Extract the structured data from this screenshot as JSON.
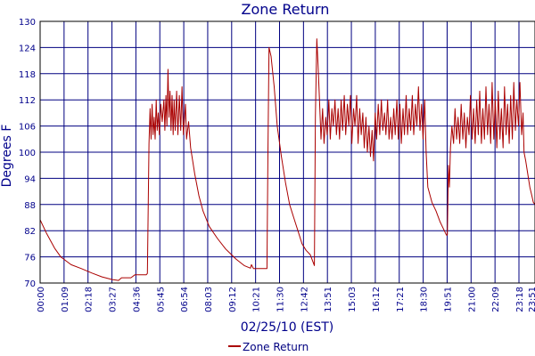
{
  "chart_data": {
    "type": "line",
    "title": "Zone Return",
    "xlabel": "02/25/10 (EST)",
    "ylabel": "Degrees F",
    "ylim": [
      70,
      130
    ],
    "yticks": [
      "70",
      "76",
      "82",
      "88",
      "94",
      "100",
      "106",
      "112",
      "118",
      "124",
      "130"
    ],
    "xticks": [
      "00:00",
      "01:09",
      "02:18",
      "03:27",
      "04:36",
      "05:45",
      "06:54",
      "08:03",
      "09:12",
      "10:21",
      "11:30",
      "12:42",
      "13:51",
      "15:03",
      "16:12",
      "17:21",
      "18:30",
      "19:51",
      "21:00",
      "22:09",
      "23:18",
      "23:51"
    ],
    "xlim_hours": [
      0,
      24
    ],
    "grid": true,
    "legend_position": "bottom-center",
    "series": [
      {
        "name": "Zone Return",
        "color": "#aa0000",
        "points": [
          [
            0.0,
            84.5
          ],
          [
            0.3,
            81.5
          ],
          [
            0.7,
            78
          ],
          [
            1.0,
            76
          ],
          [
            1.5,
            74.2
          ],
          [
            2.0,
            73.3
          ],
          [
            2.5,
            72.3
          ],
          [
            3.0,
            71.4
          ],
          [
            3.5,
            70.8
          ],
          [
            3.8,
            70.6
          ],
          [
            3.95,
            71.2
          ],
          [
            4.4,
            71.2
          ],
          [
            4.6,
            71.9
          ],
          [
            5.15,
            71.9
          ],
          [
            5.2,
            72.2
          ],
          [
            5.28,
            102
          ],
          [
            5.33,
            110
          ],
          [
            5.38,
            103
          ],
          [
            5.43,
            111
          ],
          [
            5.48,
            104
          ],
          [
            5.53,
            108
          ],
          [
            5.58,
            103
          ],
          [
            5.63,
            112
          ],
          [
            5.68,
            105
          ],
          [
            5.73,
            109
          ],
          [
            5.78,
            104
          ],
          [
            5.85,
            111
          ],
          [
            5.92,
            107
          ],
          [
            6.0,
            112
          ],
          [
            6.05,
            105
          ],
          [
            6.1,
            113
          ],
          [
            6.15,
            106
          ],
          [
            6.2,
            119
          ],
          [
            6.25,
            108
          ],
          [
            6.3,
            114
          ],
          [
            6.35,
            105
          ],
          [
            6.4,
            113
          ],
          [
            6.45,
            104
          ],
          [
            6.5,
            112
          ],
          [
            6.55,
            105
          ],
          [
            6.62,
            114
          ],
          [
            6.68,
            104
          ],
          [
            6.75,
            113
          ],
          [
            6.82,
            105
          ],
          [
            6.88,
            115
          ],
          [
            6.95,
            104
          ],
          [
            7.05,
            111
          ],
          [
            7.1,
            103
          ],
          [
            7.2,
            107
          ],
          [
            7.3,
            101
          ],
          [
            7.5,
            95
          ],
          [
            7.7,
            90
          ],
          [
            7.9,
            86.5
          ],
          [
            8.2,
            83
          ],
          [
            8.6,
            80.2
          ],
          [
            9.0,
            77.8
          ],
          [
            9.5,
            75.5
          ],
          [
            9.9,
            74
          ],
          [
            10.2,
            73.4
          ],
          [
            10.25,
            74.2
          ],
          [
            10.35,
            73.3
          ],
          [
            11.0,
            73.3
          ],
          [
            11.05,
            100
          ],
          [
            11.1,
            124
          ],
          [
            11.2,
            122
          ],
          [
            11.35,
            115
          ],
          [
            11.5,
            106
          ],
          [
            11.7,
            99
          ],
          [
            11.9,
            93
          ],
          [
            12.1,
            88
          ],
          [
            12.3,
            85
          ],
          [
            12.5,
            82
          ],
          [
            12.7,
            79
          ],
          [
            12.9,
            77.5
          ],
          [
            13.1,
            76.5
          ],
          [
            13.3,
            74
          ],
          [
            13.35,
            108
          ],
          [
            13.42,
            126
          ],
          [
            13.48,
            120
          ],
          [
            13.55,
            112
          ],
          [
            13.62,
            103
          ],
          [
            13.7,
            110
          ],
          [
            13.77,
            102
          ],
          [
            13.85,
            108
          ],
          [
            13.92,
            104
          ],
          [
            14.0,
            112
          ],
          [
            14.07,
            103
          ],
          [
            14.15,
            110
          ],
          [
            14.22,
            106
          ],
          [
            14.3,
            112
          ],
          [
            14.37,
            104
          ],
          [
            14.45,
            110
          ],
          [
            14.52,
            103
          ],
          [
            14.6,
            112
          ],
          [
            14.67,
            105
          ],
          [
            14.75,
            113
          ],
          [
            14.82,
            104
          ],
          [
            14.9,
            111
          ],
          [
            14.97,
            106
          ],
          [
            15.05,
            113
          ],
          [
            15.12,
            102
          ],
          [
            15.2,
            110
          ],
          [
            15.27,
            106
          ],
          [
            15.35,
            113
          ],
          [
            15.42,
            102
          ],
          [
            15.5,
            110
          ],
          [
            15.57,
            104
          ],
          [
            15.65,
            109
          ],
          [
            15.72,
            101
          ],
          [
            15.8,
            108
          ],
          [
            15.87,
            100
          ],
          [
            15.95,
            106
          ],
          [
            16.02,
            99
          ],
          [
            16.1,
            105
          ],
          [
            16.17,
            98
          ],
          [
            16.25,
            109
          ],
          [
            16.32,
            103
          ],
          [
            16.4,
            111
          ],
          [
            16.47,
            104
          ],
          [
            16.55,
            112
          ],
          [
            16.62,
            105
          ],
          [
            16.7,
            109
          ],
          [
            16.77,
            104
          ],
          [
            16.85,
            112
          ],
          [
            16.92,
            103
          ],
          [
            17.0,
            108
          ],
          [
            17.07,
            103
          ],
          [
            17.15,
            110
          ],
          [
            17.22,
            104
          ],
          [
            17.3,
            112
          ],
          [
            17.37,
            103
          ],
          [
            17.45,
            111
          ],
          [
            17.52,
            102
          ],
          [
            17.6,
            110
          ],
          [
            17.67,
            104
          ],
          [
            17.75,
            113
          ],
          [
            17.82,
            104
          ],
          [
            17.9,
            110
          ],
          [
            17.97,
            105
          ],
          [
            18.05,
            113
          ],
          [
            18.12,
            104
          ],
          [
            18.2,
            111
          ],
          [
            18.27,
            106
          ],
          [
            18.35,
            115
          ],
          [
            18.42,
            105
          ],
          [
            18.5,
            111
          ],
          [
            18.57,
            103
          ],
          [
            18.65,
            112
          ],
          [
            18.72,
            100
          ],
          [
            18.8,
            92
          ],
          [
            19.0,
            88.5
          ],
          [
            19.2,
            86.5
          ],
          [
            19.4,
            84
          ],
          [
            19.6,
            82
          ],
          [
            19.7,
            81
          ],
          [
            19.75,
            81
          ],
          [
            19.8,
            97
          ],
          [
            19.85,
            92
          ],
          [
            19.9,
            101
          ],
          [
            19.97,
            106
          ],
          [
            20.05,
            102
          ],
          [
            20.12,
            110
          ],
          [
            20.2,
            103
          ],
          [
            20.27,
            108
          ],
          [
            20.35,
            102
          ],
          [
            20.42,
            111
          ],
          [
            20.5,
            103
          ],
          [
            20.57,
            109
          ],
          [
            20.65,
            101
          ],
          [
            20.72,
            108
          ],
          [
            20.8,
            104
          ],
          [
            20.87,
            113
          ],
          [
            20.95,
            103
          ],
          [
            21.02,
            110
          ],
          [
            21.1,
            102
          ],
          [
            21.17,
            112
          ],
          [
            21.25,
            104
          ],
          [
            21.32,
            114
          ],
          [
            21.4,
            102
          ],
          [
            21.47,
            110
          ],
          [
            21.55,
            103
          ],
          [
            21.62,
            115
          ],
          [
            21.7,
            104
          ],
          [
            21.77,
            111
          ],
          [
            21.85,
            102
          ],
          [
            21.92,
            116
          ],
          [
            22.0,
            103
          ],
          [
            22.07,
            112
          ],
          [
            22.15,
            101
          ],
          [
            22.22,
            114
          ],
          [
            22.3,
            103
          ],
          [
            22.37,
            110
          ],
          [
            22.45,
            101
          ],
          [
            22.52,
            115
          ],
          [
            22.6,
            104
          ],
          [
            22.67,
            111
          ],
          [
            22.75,
            102
          ],
          [
            22.82,
            113
          ],
          [
            22.9,
            103
          ],
          [
            22.97,
            116
          ],
          [
            23.05,
            105
          ],
          [
            23.12,
            112
          ],
          [
            23.2,
            106
          ],
          [
            23.27,
            116
          ],
          [
            23.35,
            104
          ],
          [
            23.42,
            109
          ],
          [
            23.47,
            100
          ],
          [
            23.55,
            98
          ],
          [
            23.65,
            95
          ],
          [
            23.75,
            92
          ],
          [
            23.85,
            90
          ],
          [
            23.92,
            88.5
          ],
          [
            24.0,
            88
          ]
        ]
      }
    ]
  }
}
